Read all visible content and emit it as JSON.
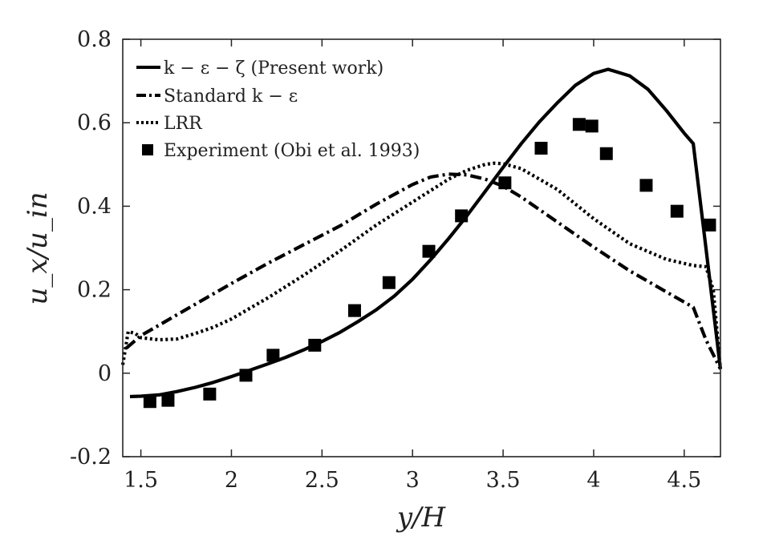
{
  "chart_data": {
    "type": "line",
    "title": "",
    "xlabel": "y/H",
    "ylabel": "u_x/u_in",
    "xlim": [
      1.4,
      4.7
    ],
    "ylim": [
      -0.2,
      0.8
    ],
    "xticks": [
      1.5,
      2,
      2.5,
      3,
      3.5,
      4,
      4.5
    ],
    "xtick_labels": [
      "1.5",
      "2",
      "2.5",
      "3",
      "3.5",
      "4",
      "4.5"
    ],
    "yticks": [
      -0.2,
      0,
      0.2,
      0.4,
      0.6,
      0.8
    ],
    "ytick_labels": [
      "-0.2",
      "0",
      "0.2",
      "0.4",
      "0.6",
      "0.8"
    ],
    "grid": false,
    "legend_position": "top-left",
    "series": [
      {
        "name": "k − ε − ζ (Present work)",
        "style": "solid",
        "color": "#000000",
        "x": [
          1.44,
          1.5,
          1.6,
          1.7,
          1.8,
          1.9,
          2.0,
          2.1,
          2.2,
          2.3,
          2.4,
          2.5,
          2.6,
          2.7,
          2.8,
          2.9,
          3.0,
          3.1,
          3.2,
          3.3,
          3.4,
          3.5,
          3.6,
          3.7,
          3.8,
          3.9,
          4.0,
          4.08,
          4.2,
          4.3,
          4.4,
          4.5,
          4.55,
          4.62,
          4.7
        ],
        "y": [
          -0.056,
          -0.055,
          -0.052,
          -0.044,
          -0.034,
          -0.022,
          -0.008,
          0.007,
          0.022,
          0.038,
          0.056,
          0.076,
          0.098,
          0.124,
          0.152,
          0.185,
          0.225,
          0.272,
          0.323,
          0.377,
          0.435,
          0.493,
          0.55,
          0.602,
          0.648,
          0.69,
          0.718,
          0.728,
          0.712,
          0.68,
          0.63,
          0.575,
          0.55,
          0.3,
          0.01
        ]
      },
      {
        "name": "Standard k − ε",
        "style": "dashdot",
        "color": "#000000",
        "x": [
          1.42,
          1.5,
          1.6,
          1.8,
          2.0,
          2.2,
          2.4,
          2.6,
          2.8,
          3.0,
          3.1,
          3.2,
          3.3,
          3.4,
          3.5,
          3.6,
          3.8,
          4.0,
          4.2,
          4.4,
          4.55,
          4.62,
          4.7
        ],
        "y": [
          0.06,
          0.09,
          0.115,
          0.165,
          0.215,
          0.263,
          0.308,
          0.353,
          0.405,
          0.452,
          0.47,
          0.477,
          0.475,
          0.465,
          0.448,
          0.422,
          0.362,
          0.302,
          0.245,
          0.195,
          0.158,
          0.08,
          0.01
        ]
      },
      {
        "name": "LRR",
        "style": "dotted",
        "color": "#000000",
        "x": [
          1.4,
          1.43,
          1.47,
          1.5,
          1.6,
          1.7,
          1.8,
          1.9,
          2.0,
          2.2,
          2.4,
          2.6,
          2.8,
          3.0,
          3.2,
          3.3,
          3.4,
          3.45,
          3.5,
          3.6,
          3.8,
          4.0,
          4.2,
          4.4,
          4.55,
          4.62,
          4.66,
          4.7
        ],
        "y": [
          0.02,
          0.1,
          0.095,
          0.085,
          0.08,
          0.082,
          0.095,
          0.11,
          0.13,
          0.18,
          0.235,
          0.293,
          0.355,
          0.41,
          0.465,
          0.486,
          0.5,
          0.503,
          0.502,
          0.49,
          0.44,
          0.37,
          0.31,
          0.273,
          0.258,
          0.255,
          0.2,
          0.01
        ]
      },
      {
        "name": "Experiment (Obi et al. 1993)",
        "style": "markers",
        "marker": "square",
        "color": "#000000",
        "x": [
          1.55,
          1.65,
          1.88,
          2.08,
          2.23,
          2.46,
          2.68,
          2.87,
          3.09,
          3.27,
          3.51,
          3.71,
          3.92,
          3.99,
          4.07,
          4.29,
          4.46,
          4.64
        ],
        "y": [
          -0.068,
          -0.065,
          -0.05,
          -0.005,
          0.043,
          0.067,
          0.15,
          0.217,
          0.292,
          0.377,
          0.456,
          0.539,
          0.596,
          0.592,
          0.526,
          0.45,
          0.388,
          0.355
        ]
      }
    ]
  }
}
